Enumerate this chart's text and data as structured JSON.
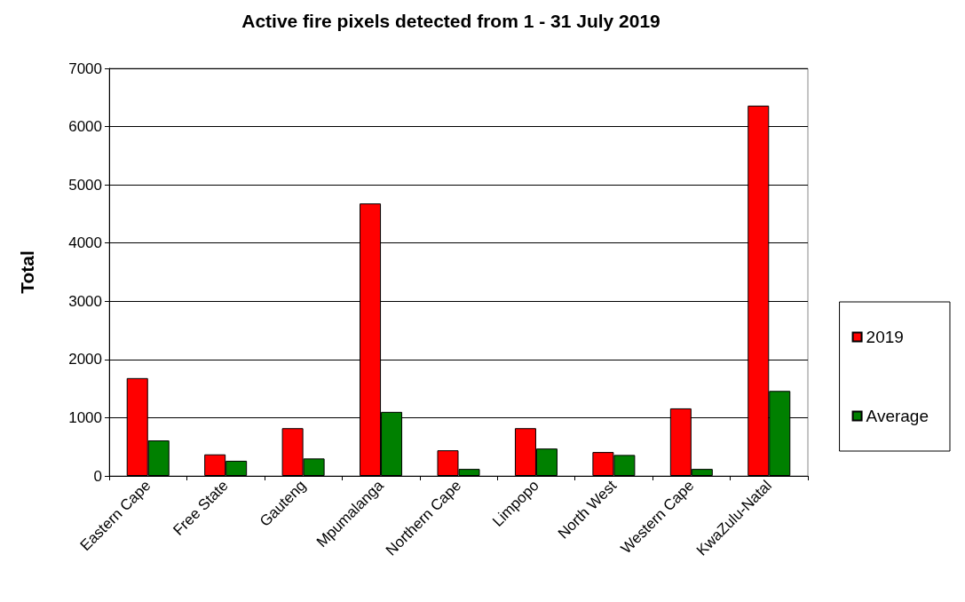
{
  "chart_data": {
    "type": "bar",
    "title": "Active fire pixels detected from 1 - 31 July 2019",
    "ylabel": "Total",
    "categories": [
      "Eastern Cape",
      "Free State",
      "Gauteng",
      "Mpumalanga",
      "Northern Cape",
      "Limpopo",
      "North West",
      "Western Cape",
      "KwaZulu-Natal"
    ],
    "series": [
      {
        "name": "2019",
        "color": "#ff0000",
        "values": [
          1680,
          370,
          820,
          4680,
          440,
          820,
          410,
          1160,
          6360
        ]
      },
      {
        "name": "Average",
        "color": "#008000",
        "values": [
          610,
          260,
          300,
          1100,
          120,
          470,
          360,
          120,
          1460
        ]
      }
    ],
    "ylim": [
      0,
      7000
    ],
    "yticks": [
      0,
      1000,
      2000,
      3000,
      4000,
      5000,
      6000,
      7000
    ],
    "grid": "y",
    "legend": "right"
  }
}
